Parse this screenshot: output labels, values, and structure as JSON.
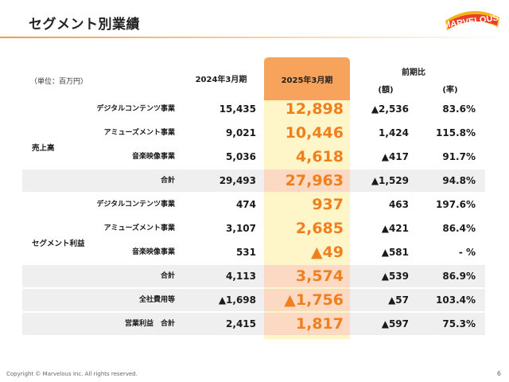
{
  "title": "セグメント別業績",
  "logo_text": "MARVELOUS!",
  "unit": "（単位：百万円）",
  "headers": {
    "prev": "2024年3月期",
    "cur": "2025年3月期",
    "compare": "前期比",
    "amount": "(額)",
    "rate": "(率)"
  },
  "groups": {
    "sales": "売上高",
    "segment_profit": "セグメント利益"
  },
  "rows": [
    {
      "label": "デジタルコンテンツ事業",
      "prev": "15,435",
      "cur": "12,898",
      "amt": "▲2,536",
      "pct": "83.6%"
    },
    {
      "label": "アミューズメント事業",
      "prev": "9,021",
      "cur": "10,446",
      "amt": "1,424",
      "pct": "115.8%"
    },
    {
      "label": "音楽映像事業",
      "prev": "5,036",
      "cur": "4,618",
      "amt": "▲417",
      "pct": "91.7%"
    },
    {
      "label": "合計",
      "prev": "29,493",
      "cur": "27,963",
      "amt": "▲1,529",
      "pct": "94.8%"
    },
    {
      "label": "デジタルコンテンツ事業",
      "prev": "474",
      "cur": "937",
      "amt": "463",
      "pct": "197.6%"
    },
    {
      "label": "アミューズメント事業",
      "prev": "3,107",
      "cur": "2,685",
      "amt": "▲421",
      "pct": "86.4%"
    },
    {
      "label": "音楽映像事業",
      "prev": "531",
      "cur": "▲49",
      "amt": "▲581",
      "pct": "- %"
    },
    {
      "label": "合計",
      "prev": "4,113",
      "cur": "3,574",
      "amt": "▲539",
      "pct": "86.9%"
    },
    {
      "label": "全社費用等",
      "prev": "▲1,698",
      "cur": "▲1,756",
      "amt": "▲57",
      "pct": "103.4%"
    },
    {
      "label": "営業利益　合計",
      "prev": "2,415",
      "cur": "1,817",
      "amt": "▲597",
      "pct": "75.3%"
    }
  ],
  "footer": "Copyright © Marvelous Inc. All rights reserved.",
  "page_number": "6",
  "colors": {
    "accent_orange": "#f07f1e",
    "header_orange": "#f7a35c",
    "current_column": "#fef6c8",
    "total_band": "#efefef",
    "total_band_current": "#fcd9c3"
  }
}
